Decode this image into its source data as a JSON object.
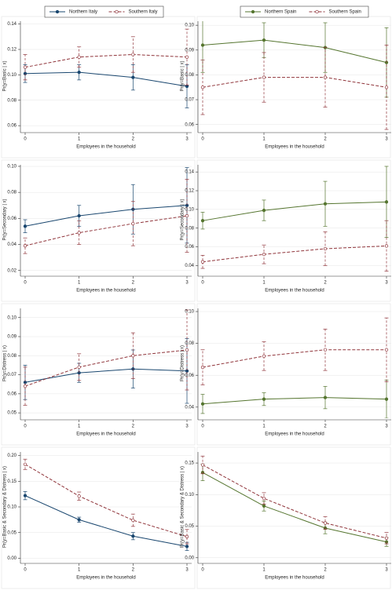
{
  "chart_data": [
    {
      "type": "line",
      "ylabel": "Pr(y=Basic | x)",
      "xlabel": "Employees in the household",
      "x": [
        0,
        1,
        2,
        3
      ],
      "xlim": [
        0,
        3
      ],
      "xticks": [
        0,
        1,
        2,
        3
      ],
      "ylim": [
        0.057,
        0.141
      ],
      "yticks": [
        {
          "value": 0.06,
          "label": "0.06"
        },
        {
          "value": 0.08,
          "label": "0.08"
        },
        {
          "value": 0.1,
          "label": "0.10"
        },
        {
          "value": 0.12,
          "label": "0.12"
        },
        0.14
      ],
      "series": [
        {
          "name": "Northern Italy",
          "color": "#1a476f",
          "marker": "filled",
          "dashed": false,
          "values": [
            0.101,
            0.102,
            0.098,
            0.091
          ],
          "errors": [
            0.007,
            0.006,
            0.01,
            0.017
          ]
        },
        {
          "name": "Southern Italy",
          "color": "#90353b",
          "marker": "hollow",
          "dashed": true,
          "values": [
            0.106,
            0.114,
            0.116,
            0.114
          ],
          "errors": [
            0.01,
            0.008,
            0.014,
            0.022
          ]
        }
      ]
    },
    {
      "type": "line",
      "ylabel": "Pr(y=Basic | x)",
      "xlabel": "Employees in the household",
      "x": [
        0,
        1,
        2,
        3
      ],
      "xlim": [
        0,
        3
      ],
      "xticks": [
        0,
        1,
        2,
        3
      ],
      "ylim": [
        0.058,
        0.101
      ],
      "yticks": [
        0.06,
        0.07,
        0.08,
        0.09,
        {
          "value": 0.1,
          "label": "0.10"
        }
      ],
      "series": [
        {
          "name": "Northern Spain",
          "color": "#55752f",
          "marker": "filled",
          "dashed": false,
          "values": [
            0.092,
            0.094,
            0.091,
            0.085
          ],
          "errors": [
            0.011,
            0.007,
            0.01,
            0.014
          ]
        },
        {
          "name": "Southern Spain",
          "color": "#90353b",
          "marker": "hollow",
          "dashed": true,
          "values": [
            0.075,
            0.079,
            0.079,
            0.075
          ],
          "errors": [
            0.011,
            0.01,
            0.012,
            0.017
          ]
        }
      ]
    },
    {
      "type": "line",
      "ylabel": "Pr(y=Secondary | x)",
      "xlabel": "Employees in the household",
      "x": [
        0,
        1,
        2,
        3
      ],
      "xlim": [
        0,
        3
      ],
      "xticks": [
        0,
        1,
        2,
        3
      ],
      "ylim": [
        0.018,
        0.1
      ],
      "yticks": [
        0.02,
        0.04,
        0.06,
        0.08,
        {
          "value": 0.1,
          "label": "0.10"
        }
      ],
      "series": [
        {
          "color": "#1a476f",
          "marker": "filled",
          "dashed": false,
          "values": [
            0.054,
            0.062,
            0.067,
            0.07
          ],
          "errors": [
            0.005,
            0.008,
            0.019,
            0.029
          ]
        },
        {
          "color": "#90353b",
          "marker": "hollow",
          "dashed": true,
          "values": [
            0.039,
            0.049,
            0.056,
            0.062
          ],
          "errors": [
            0.006,
            0.009,
            0.017,
            0.028
          ]
        }
      ]
    },
    {
      "type": "line",
      "ylabel": "Pr(y=Secondary | x)",
      "xlabel": "Employees in the household",
      "x": [
        0,
        1,
        2,
        3
      ],
      "xlim": [
        0,
        3
      ],
      "xticks": [
        0,
        1,
        2,
        3
      ],
      "ylim": [
        0.032,
        0.146
      ],
      "yticks": [
        0.04,
        0.06,
        0.08,
        {
          "value": 0.1,
          "label": "0.10"
        },
        0.12,
        0.14
      ],
      "series": [
        {
          "color": "#55752f",
          "marker": "filled",
          "dashed": false,
          "values": [
            0.088,
            0.099,
            0.106,
            0.108
          ],
          "errors": [
            0.009,
            0.011,
            0.024,
            0.038
          ]
        },
        {
          "color": "#90353b",
          "marker": "hollow",
          "dashed": true,
          "values": [
            0.044,
            0.052,
            0.058,
            0.061
          ],
          "errors": [
            0.007,
            0.01,
            0.018,
            0.027
          ]
        }
      ]
    },
    {
      "type": "line",
      "ylabel": "Pr(y=Distress | x)",
      "xlabel": "Employees in the household",
      "x": [
        0,
        1,
        2,
        3
      ],
      "xlim": [
        0,
        3
      ],
      "xticks": [
        0,
        1,
        2,
        3
      ],
      "ylim": [
        0.048,
        0.104
      ],
      "yticks": [
        0.05,
        0.06,
        0.07,
        0.08,
        0.09,
        {
          "value": 0.1,
          "label": "0.10"
        }
      ],
      "series": [
        {
          "color": "#1a476f",
          "marker": "filled",
          "dashed": false,
          "values": [
            0.066,
            0.071,
            0.073,
            0.072
          ],
          "errors": [
            0.009,
            0.005,
            0.01,
            0.017
          ]
        },
        {
          "color": "#90353b",
          "marker": "hollow",
          "dashed": true,
          "values": [
            0.064,
            0.074,
            0.08,
            0.083
          ],
          "errors": [
            0.01,
            0.007,
            0.012,
            0.021
          ]
        }
      ]
    },
    {
      "type": "line",
      "ylabel": "Pr(y=Distress | x)",
      "xlabel": "Employees in the household",
      "x": [
        0,
        1,
        2,
        3
      ],
      "xlim": [
        0,
        3
      ],
      "xticks": [
        0,
        1,
        2,
        3
      ],
      "ylim": [
        0.034,
        0.101
      ],
      "yticks": [
        0.04,
        0.06,
        0.08,
        {
          "value": 0.1,
          "label": "0.10"
        }
      ],
      "series": [
        {
          "color": "#55752f",
          "marker": "filled",
          "dashed": false,
          "values": [
            0.042,
            0.045,
            0.046,
            0.045
          ],
          "errors": [
            0.006,
            0.004,
            0.007,
            0.012
          ]
        },
        {
          "color": "#90353b",
          "marker": "hollow",
          "dashed": true,
          "values": [
            0.065,
            0.072,
            0.076,
            0.076
          ],
          "errors": [
            0.011,
            0.009,
            0.013,
            0.02
          ]
        }
      ]
    },
    {
      "type": "line",
      "ylabel": "Pr(y=Basic & Secondary & Distress | x)",
      "xlabel": "Employees in the household",
      "x": [
        0,
        1,
        2,
        3
      ],
      "xlim": [
        0,
        3
      ],
      "xticks": [
        0,
        1,
        2,
        3
      ],
      "ylim": [
        -0.004,
        0.204
      ],
      "yticks": [
        {
          "value": 0,
          "label": "0.00"
        },
        0.05,
        {
          "value": 0.1,
          "label": "0.10"
        },
        0.15,
        {
          "value": 0.2,
          "label": "0.20"
        }
      ],
      "series": [
        {
          "color": "#1a476f",
          "marker": "filled",
          "dashed": false,
          "values": [
            0.122,
            0.075,
            0.043,
            0.023
          ],
          "errors": [
            0.008,
            0.005,
            0.007,
            0.008
          ]
        },
        {
          "color": "#90353b",
          "marker": "hollow",
          "dashed": true,
          "values": [
            0.183,
            0.121,
            0.074,
            0.042
          ],
          "errors": [
            0.01,
            0.008,
            0.012,
            0.014
          ]
        }
      ]
    },
    {
      "type": "line",
      "ylabel": "Pr(y=Basic & Secondary & Distress | x)",
      "xlabel": "Employees in the household",
      "x": [
        0,
        1,
        2,
        3
      ],
      "xlim": [
        0,
        3
      ],
      "xticks": [
        0,
        1,
        2,
        3
      ],
      "ylim": [
        -0.004,
        0.165
      ],
      "yticks": [
        {
          "value": 0,
          "label": "0.00"
        },
        0.05,
        {
          "value": 0.1,
          "label": "0.10"
        },
        0.15
      ],
      "series": [
        {
          "color": "#55752f",
          "marker": "filled",
          "dashed": false,
          "values": [
            0.135,
            0.082,
            0.047,
            0.025
          ],
          "errors": [
            0.013,
            0.008,
            0.009,
            0.007
          ]
        },
        {
          "color": "#90353b",
          "marker": "hollow",
          "dashed": true,
          "values": [
            0.147,
            0.094,
            0.055,
            0.031
          ],
          "errors": [
            0.014,
            0.009,
            0.01,
            0.009
          ]
        }
      ]
    }
  ]
}
